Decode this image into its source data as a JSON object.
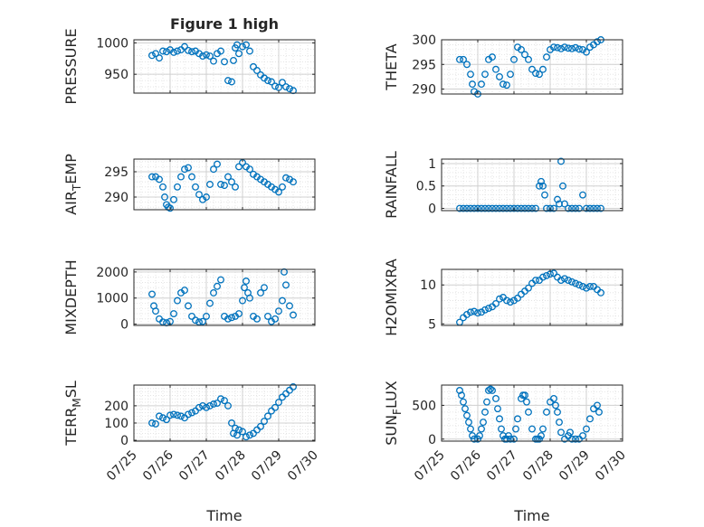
{
  "figure": {
    "title": "Figure 1 high"
  },
  "colors": {
    "marker": "#0072BD",
    "axis": "#262626",
    "grid": "#dfdfdf",
    "background": "#ffffff"
  },
  "chart_data": [
    {
      "type": "scatter",
      "title": "Figure 1 high",
      "xlabel": "",
      "ylabel": "PRESSURE",
      "ylabel_sub": "",
      "ylabel_tail": "",
      "xlim": [
        25,
        30
      ],
      "ylim": [
        920,
        1005
      ],
      "yticks": [
        950,
        1000
      ],
      "ytick_labels": [
        "950",
        "1000"
      ],
      "xticks": [
        25,
        26,
        27,
        28,
        29,
        30
      ],
      "xtick_labels": [],
      "grid": true,
      "minor_grid": true,
      "x": [
        25.5,
        25.6,
        25.7,
        25.8,
        25.9,
        26.0,
        26.1,
        26.2,
        26.3,
        26.4,
        26.5,
        26.6,
        26.7,
        26.8,
        26.9,
        27.0,
        27.1,
        27.2,
        27.3,
        27.4,
        27.5,
        27.6,
        27.7,
        27.75,
        27.8,
        27.85,
        27.9,
        28.0,
        28.1,
        28.2,
        28.3,
        28.4,
        28.5,
        28.6,
        28.7,
        28.8,
        28.9,
        29.0,
        29.1,
        29.2,
        29.3,
        29.4
      ],
      "y": [
        980,
        983,
        976,
        987,
        986,
        989,
        985,
        987,
        989,
        994,
        988,
        986,
        987,
        983,
        979,
        981,
        979,
        971,
        983,
        987,
        970,
        940,
        938,
        972,
        992,
        997,
        983,
        994,
        997,
        987,
        962,
        956,
        949,
        944,
        940,
        938,
        931,
        929,
        937,
        930,
        927,
        924
      ]
    },
    {
      "type": "scatter",
      "title": "",
      "xlabel": "",
      "ylabel": "THETA",
      "ylabel_sub": "",
      "ylabel_tail": "",
      "xlim": [
        25,
        30
      ],
      "ylim": [
        289,
        300
      ],
      "yticks": [
        290,
        295,
        300
      ],
      "ytick_labels": [
        "290",
        "295",
        "300"
      ],
      "xticks": [
        25,
        26,
        27,
        28,
        29,
        30
      ],
      "xtick_labels": [],
      "grid": true,
      "minor_grid": true,
      "x": [
        25.5,
        25.6,
        25.7,
        25.8,
        25.85,
        25.9,
        26.0,
        26.1,
        26.2,
        26.3,
        26.4,
        26.5,
        26.6,
        26.7,
        26.8,
        26.9,
        27.0,
        27.1,
        27.2,
        27.3,
        27.4,
        27.5,
        27.6,
        27.7,
        27.8,
        27.9,
        28.0,
        28.1,
        28.2,
        28.3,
        28.4,
        28.5,
        28.6,
        28.7,
        28.8,
        28.9,
        29.0,
        29.1,
        29.2,
        29.3,
        29.4
      ],
      "y": [
        296,
        296,
        295,
        293,
        291,
        289.5,
        289,
        291,
        293,
        296,
        296.5,
        294,
        292.5,
        291,
        290.8,
        293,
        296,
        298.5,
        298,
        297,
        296,
        294,
        293.2,
        293,
        294,
        296.5,
        298,
        298.5,
        298.4,
        298.2,
        298.5,
        298.3,
        298.2,
        298.4,
        298.1,
        298,
        297.5,
        298.5,
        299,
        299.6,
        300
      ]
    },
    {
      "type": "scatter",
      "title": "",
      "xlabel": "",
      "ylabel": "AIR",
      "ylabel_sub": "T",
      "ylabel_tail": "EMP",
      "xlim": [
        25,
        30
      ],
      "ylim": [
        287.5,
        297.5
      ],
      "yticks": [
        290,
        295
      ],
      "ytick_labels": [
        "290",
        "295"
      ],
      "xticks": [
        25,
        26,
        27,
        28,
        29,
        30
      ],
      "xtick_labels": [],
      "grid": true,
      "minor_grid": true,
      "x": [
        25.5,
        25.6,
        25.7,
        25.8,
        25.85,
        25.9,
        25.95,
        26.0,
        26.1,
        26.2,
        26.3,
        26.4,
        26.5,
        26.6,
        26.7,
        26.8,
        26.9,
        27.0,
        27.1,
        27.2,
        27.3,
        27.4,
        27.5,
        27.6,
        27.7,
        27.8,
        27.9,
        28.0,
        28.1,
        28.2,
        28.3,
        28.4,
        28.5,
        28.6,
        28.7,
        28.8,
        28.9,
        29.0,
        29.1,
        29.2,
        29.3,
        29.4
      ],
      "y": [
        294,
        294,
        293.5,
        292,
        290,
        288.5,
        288,
        287.8,
        289.5,
        292,
        294,
        295.5,
        295.8,
        294,
        292,
        290.5,
        289.5,
        290,
        292.5,
        295.5,
        296.5,
        292.5,
        292.3,
        294,
        293,
        292,
        296,
        296.8,
        296,
        295.5,
        294.5,
        294,
        293.5,
        293,
        292.5,
        292,
        291.5,
        291,
        292,
        293.8,
        293.5,
        293
      ]
    },
    {
      "type": "scatter",
      "title": "",
      "xlabel": "",
      "ylabel": "RAINFALL",
      "ylabel_sub": "",
      "ylabel_tail": "",
      "xlim": [
        25,
        30
      ],
      "ylim": [
        -0.05,
        1.1
      ],
      "yticks": [
        0,
        0.5,
        1
      ],
      "ytick_labels": [
        "0",
        "0.5",
        "1"
      ],
      "xticks": [
        25,
        26,
        27,
        28,
        29,
        30
      ],
      "xtick_labels": [],
      "grid": true,
      "minor_grid": true,
      "x": [
        25.5,
        25.6,
        25.7,
        25.8,
        25.9,
        26.0,
        26.1,
        26.2,
        26.3,
        26.4,
        26.5,
        26.6,
        26.7,
        26.8,
        26.9,
        27.0,
        27.1,
        27.2,
        27.3,
        27.4,
        27.5,
        27.6,
        27.7,
        27.75,
        27.8,
        27.85,
        27.9,
        28.0,
        28.1,
        28.2,
        28.25,
        28.3,
        28.35,
        28.4,
        28.5,
        28.6,
        28.7,
        28.8,
        28.9,
        29.0,
        29.1,
        29.2,
        29.3,
        29.4
      ],
      "y": [
        0,
        0,
        0,
        0,
        0,
        0,
        0,
        0,
        0,
        0,
        0,
        0,
        0,
        0,
        0,
        0,
        0,
        0,
        0,
        0,
        0,
        0,
        0.5,
        0.6,
        0.5,
        0.3,
        0,
        0,
        0,
        0.2,
        0.1,
        1.05,
        0.5,
        0.1,
        0,
        0,
        0,
        0,
        0.3,
        0,
        0,
        0,
        0,
        0
      ]
    },
    {
      "type": "scatter",
      "title": "",
      "xlabel": "",
      "ylabel": "MIXDEPTH",
      "ylabel_sub": "",
      "ylabel_tail": "",
      "xlim": [
        25,
        30
      ],
      "ylim": [
        -50,
        2100
      ],
      "yticks": [
        0,
        1000,
        2000
      ],
      "ytick_labels": [
        "0",
        "1000",
        "2000"
      ],
      "xticks": [
        25,
        26,
        27,
        28,
        29,
        30
      ],
      "xtick_labels": [],
      "grid": true,
      "minor_grid": true,
      "x": [
        25.5,
        25.55,
        25.6,
        25.7,
        25.8,
        25.9,
        26.0,
        26.1,
        26.2,
        26.3,
        26.4,
        26.5,
        26.6,
        26.7,
        26.8,
        26.9,
        27.0,
        27.1,
        27.2,
        27.3,
        27.4,
        27.5,
        27.6,
        27.7,
        27.8,
        27.9,
        28.0,
        28.05,
        28.1,
        28.15,
        28.2,
        28.3,
        28.4,
        28.5,
        28.6,
        28.7,
        28.8,
        28.9,
        29.0,
        29.1,
        29.15,
        29.2,
        29.3,
        29.4
      ],
      "y": [
        1150,
        700,
        500,
        200,
        80,
        50,
        100,
        400,
        900,
        1200,
        1300,
        700,
        300,
        150,
        80,
        100,
        300,
        800,
        1200,
        1450,
        1700,
        300,
        200,
        250,
        300,
        400,
        900,
        1400,
        1650,
        1200,
        1000,
        300,
        200,
        1200,
        1400,
        300,
        100,
        200,
        500,
        900,
        2000,
        1500,
        700,
        350
      ]
    },
    {
      "type": "scatter",
      "title": "",
      "xlabel": "",
      "ylabel": "H2OMIXRA",
      "ylabel_sub": "",
      "ylabel_tail": "",
      "xlim": [
        25,
        30
      ],
      "ylim": [
        4.8,
        12
      ],
      "yticks": [
        5,
        10
      ],
      "ytick_labels": [
        "5",
        "10"
      ],
      "xticks": [
        25,
        26,
        27,
        28,
        29,
        30
      ],
      "xtick_labels": [],
      "grid": true,
      "minor_grid": true,
      "x": [
        25.5,
        25.6,
        25.7,
        25.8,
        25.9,
        26.0,
        26.1,
        26.2,
        26.3,
        26.4,
        26.5,
        26.6,
        26.7,
        26.8,
        26.9,
        27.0,
        27.1,
        27.2,
        27.3,
        27.4,
        27.5,
        27.6,
        27.7,
        27.8,
        27.9,
        28.0,
        28.1,
        28.2,
        28.3,
        28.4,
        28.5,
        28.6,
        28.7,
        28.8,
        28.9,
        29.0,
        29.1,
        29.2,
        29.3,
        29.4
      ],
      "y": [
        5.2,
        5.8,
        6.2,
        6.5,
        6.6,
        6.4,
        6.5,
        6.8,
        7.0,
        7.2,
        7.6,
        8.2,
        8.4,
        8.0,
        7.8,
        8.0,
        8.3,
        8.8,
        9.2,
        9.6,
        10.2,
        10.6,
        10.6,
        11.0,
        11.2,
        11.4,
        11.5,
        11.0,
        10.6,
        10.8,
        10.6,
        10.4,
        10.2,
        10.0,
        9.8,
        9.6,
        9.8,
        9.8,
        9.4,
        9.0
      ]
    },
    {
      "type": "scatter",
      "title": "",
      "xlabel": "Time",
      "ylabel": "TERR",
      "ylabel_sub": "M",
      "ylabel_tail": "SL",
      "xlim": [
        25,
        30
      ],
      "ylim": [
        -5,
        320
      ],
      "yticks": [
        0,
        100,
        200
      ],
      "ytick_labels": [
        "0",
        "100",
        "200"
      ],
      "xticks": [
        25,
        26,
        27,
        28,
        29,
        30
      ],
      "xtick_labels": [
        "07/25",
        "07/26",
        "07/27",
        "07/28",
        "07/29",
        "07/30"
      ],
      "grid": true,
      "minor_grid": true,
      "x": [
        25.5,
        25.6,
        25.7,
        25.8,
        25.9,
        26.0,
        26.1,
        26.2,
        26.3,
        26.4,
        26.5,
        26.6,
        26.7,
        26.8,
        26.9,
        27.0,
        27.1,
        27.2,
        27.3,
        27.4,
        27.5,
        27.6,
        27.7,
        27.75,
        27.8,
        27.85,
        27.9,
        28.0,
        28.1,
        28.2,
        28.3,
        28.4,
        28.5,
        28.6,
        28.7,
        28.8,
        28.9,
        29.0,
        29.1,
        29.2,
        29.3,
        29.4
      ],
      "y": [
        100,
        95,
        140,
        130,
        120,
        145,
        150,
        145,
        140,
        130,
        150,
        160,
        170,
        190,
        200,
        190,
        200,
        210,
        215,
        240,
        230,
        200,
        100,
        40,
        70,
        30,
        60,
        50,
        20,
        30,
        40,
        60,
        80,
        110,
        140,
        170,
        190,
        220,
        250,
        270,
        290,
        310
      ]
    },
    {
      "type": "scatter",
      "title": "",
      "xlabel": "Time",
      "ylabel": "SUN",
      "ylabel_sub": "F",
      "ylabel_tail": "LUX",
      "xlim": [
        25,
        30
      ],
      "ylim": [
        -30,
        800
      ],
      "yticks": [
        0,
        500
      ],
      "ytick_labels": [
        "0",
        "500"
      ],
      "xticks": [
        25,
        26,
        27,
        28,
        29,
        30
      ],
      "xtick_labels": [
        "07/25",
        "07/26",
        "07/27",
        "07/28",
        "07/29",
        "07/30"
      ],
      "grid": true,
      "minor_grid": true,
      "x": [
        25.5,
        25.55,
        25.6,
        25.65,
        25.7,
        25.75,
        25.8,
        25.85,
        25.9,
        26.0,
        26.05,
        26.1,
        26.15,
        26.2,
        26.25,
        26.3,
        26.35,
        26.4,
        26.5,
        26.55,
        26.6,
        26.65,
        26.7,
        26.75,
        26.8,
        26.85,
        26.9,
        27.0,
        27.05,
        27.1,
        27.2,
        27.25,
        27.3,
        27.35,
        27.4,
        27.5,
        27.6,
        27.65,
        27.7,
        27.75,
        27.8,
        27.9,
        28.0,
        28.1,
        28.15,
        28.2,
        28.25,
        28.3,
        28.4,
        28.5,
        28.55,
        28.6,
        28.7,
        28.8,
        28.9,
        29.0,
        29.1,
        29.2,
        29.3,
        29.35
      ],
      "y": [
        720,
        650,
        550,
        450,
        350,
        250,
        150,
        50,
        0,
        0,
        50,
        150,
        250,
        400,
        550,
        720,
        740,
        720,
        600,
        450,
        300,
        150,
        50,
        0,
        0,
        50,
        0,
        0,
        150,
        300,
        600,
        650,
        650,
        550,
        400,
        150,
        0,
        0,
        0,
        50,
        150,
        400,
        550,
        600,
        500,
        400,
        250,
        100,
        0,
        50,
        100,
        0,
        0,
        0,
        50,
        150,
        300,
        450,
        500,
        400
      ]
    }
  ]
}
